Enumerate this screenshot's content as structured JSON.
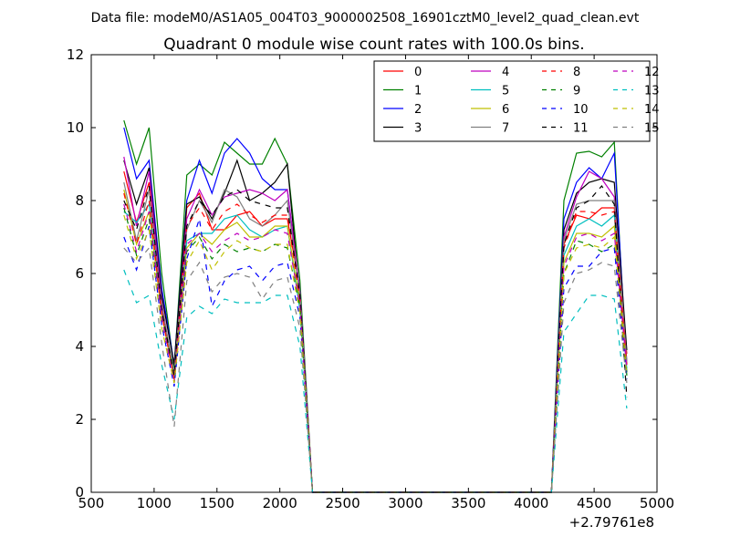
{
  "chart_data": {
    "type": "line",
    "suptitle": "Data file: modeM0/AS1A05_004T03_9000002508_16901cztM0_level2_quad_clean.evt",
    "title": "Quadrant 0 module wise count rates with 100.0s bins.",
    "xlabel": "",
    "ylabel": "",
    "offset_label": "+2.79761e8",
    "xlim": [
      500,
      5000
    ],
    "ylim": [
      0,
      12
    ],
    "xticks": [
      500,
      1000,
      1500,
      2000,
      2500,
      3000,
      3500,
      4000,
      4500,
      5000
    ],
    "yticks": [
      0,
      2,
      4,
      6,
      8,
      10,
      12
    ],
    "legend_position": "top-right",
    "x": [
      760,
      860,
      960,
      1060,
      1160,
      1260,
      1360,
      1460,
      1560,
      1660,
      1760,
      1860,
      1960,
      2060,
      2160,
      2260,
      2360,
      2460,
      2560,
      2660,
      2760,
      2860,
      2960,
      3060,
      3160,
      3260,
      3360,
      3460,
      3560,
      3660,
      3760,
      3860,
      3960,
      4060,
      4160,
      4260,
      4360,
      4460,
      4560,
      4660,
      4760
    ],
    "series": [
      {
        "name": "0",
        "color": "#ff0000",
        "dash": "solid",
        "values": [
          8.8,
          7.4,
          8.5,
          5.0,
          3.1,
          7.8,
          8.2,
          7.2,
          7.2,
          7.6,
          7.7,
          7.3,
          7.5,
          7.5,
          5.6,
          0,
          0,
          0,
          0,
          0,
          0,
          0,
          0,
          0,
          0,
          0,
          0,
          0,
          0,
          0,
          0,
          0,
          0,
          0,
          0,
          6.8,
          7.6,
          7.5,
          7.8,
          7.8,
          3.8
        ]
      },
      {
        "name": "1",
        "color": "#008000",
        "dash": "solid",
        "values": [
          10.2,
          9.0,
          10.0,
          6.0,
          3.4,
          8.7,
          9.0,
          8.7,
          9.6,
          9.3,
          9.0,
          9.0,
          9.7,
          9.0,
          5.8,
          0,
          0,
          0,
          0,
          0,
          0,
          0,
          0,
          0,
          0,
          0,
          0,
          0,
          0,
          0,
          0,
          0,
          0,
          0,
          0,
          8.0,
          9.3,
          9.35,
          9.2,
          9.6,
          3.2
        ]
      },
      {
        "name": "2",
        "color": "#0000ff",
        "dash": "solid",
        "values": [
          10.0,
          8.6,
          9.1,
          5.6,
          3.5,
          8.0,
          9.1,
          8.2,
          9.3,
          9.7,
          9.3,
          8.6,
          8.3,
          8.3,
          5.5,
          0,
          0,
          0,
          0,
          0,
          0,
          0,
          0,
          0,
          0,
          0,
          0,
          0,
          0,
          0,
          0,
          0,
          0,
          0,
          0,
          7.5,
          8.5,
          8.9,
          8.6,
          9.3,
          3.5
        ]
      },
      {
        "name": "3",
        "color": "#000000",
        "dash": "solid",
        "values": [
          9.1,
          7.9,
          8.9,
          5.4,
          3.5,
          7.9,
          8.1,
          7.5,
          8.2,
          9.1,
          8.0,
          8.2,
          8.5,
          9.0,
          5.3,
          0,
          0,
          0,
          0,
          0,
          0,
          0,
          0,
          0,
          0,
          0,
          0,
          0,
          0,
          0,
          0,
          0,
          0,
          0,
          0,
          7.2,
          8.2,
          8.5,
          8.6,
          8.5,
          3.9
        ]
      },
      {
        "name": "4",
        "color": "#bf00bf",
        "dash": "solid",
        "values": [
          9.2,
          7.3,
          8.8,
          5.2,
          3.2,
          7.5,
          8.3,
          7.6,
          8.1,
          8.2,
          8.3,
          8.2,
          8.0,
          8.3,
          5.5,
          0,
          0,
          0,
          0,
          0,
          0,
          0,
          0,
          0,
          0,
          0,
          0,
          0,
          0,
          0,
          0,
          0,
          0,
          0,
          0,
          7.0,
          8.1,
          8.8,
          8.6,
          8.1,
          3.6
        ]
      },
      {
        "name": "5",
        "color": "#00bfbf",
        "dash": "solid",
        "values": [
          7.7,
          7.4,
          7.9,
          4.9,
          3.2,
          6.9,
          7.1,
          7.1,
          7.5,
          7.6,
          7.2,
          7.0,
          7.2,
          7.3,
          5.0,
          0,
          0,
          0,
          0,
          0,
          0,
          0,
          0,
          0,
          0,
          0,
          0,
          0,
          0,
          0,
          0,
          0,
          0,
          0,
          0,
          6.5,
          7.3,
          7.5,
          7.3,
          7.6,
          3.4
        ]
      },
      {
        "name": "6",
        "color": "#bfbf00",
        "dash": "solid",
        "values": [
          8.3,
          6.8,
          7.7,
          4.9,
          3.1,
          6.7,
          7.1,
          6.8,
          7.2,
          7.4,
          7.0,
          7.0,
          7.3,
          7.3,
          5.2,
          0,
          0,
          0,
          0,
          0,
          0,
          0,
          0,
          0,
          0,
          0,
          0,
          0,
          0,
          0,
          0,
          0,
          0,
          0,
          0,
          6.3,
          7.1,
          7.1,
          7.0,
          7.3,
          3.5
        ]
      },
      {
        "name": "7",
        "color": "#808080",
        "dash": "solid",
        "values": [
          8.5,
          6.9,
          8.3,
          5.1,
          3.3,
          7.2,
          8.0,
          7.4,
          8.3,
          8.1,
          7.5,
          7.3,
          7.6,
          8.0,
          5.4,
          0,
          0,
          0,
          0,
          0,
          0,
          0,
          0,
          0,
          0,
          0,
          0,
          0,
          0,
          0,
          0,
          0,
          0,
          0,
          0,
          6.9,
          7.9,
          8.0,
          8.0,
          8.0,
          3.6
        ]
      },
      {
        "name": "8",
        "color": "#ff0000",
        "dash": "dashed",
        "values": [
          8.2,
          6.8,
          8.0,
          4.9,
          3.1,
          7.3,
          7.8,
          7.2,
          7.7,
          7.9,
          7.6,
          7.4,
          7.6,
          7.6,
          5.3,
          0,
          0,
          0,
          0,
          0,
          0,
          0,
          0,
          0,
          0,
          0,
          0,
          0,
          0,
          0,
          0,
          0,
          0,
          0,
          0,
          6.7,
          7.7,
          7.7,
          7.6,
          7.7,
          3.5
        ]
      },
      {
        "name": "9",
        "color": "#008000",
        "dash": "dashed",
        "values": [
          7.8,
          6.5,
          7.5,
          4.8,
          3.0,
          6.6,
          7.0,
          6.4,
          6.8,
          6.6,
          6.7,
          6.6,
          6.8,
          6.7,
          5.1,
          0,
          0,
          0,
          0,
          0,
          0,
          0,
          0,
          0,
          0,
          0,
          0,
          0,
          0,
          0,
          0,
          0,
          0,
          0,
          0,
          6.0,
          6.9,
          6.8,
          6.6,
          6.8,
          3.3
        ]
      },
      {
        "name": "10",
        "color": "#0000ff",
        "dash": "dashed",
        "values": [
          7.0,
          6.1,
          7.3,
          4.6,
          2.9,
          6.4,
          7.5,
          5.1,
          5.8,
          6.1,
          6.2,
          5.8,
          6.2,
          6.3,
          4.8,
          0,
          0,
          0,
          0,
          0,
          0,
          0,
          0,
          0,
          0,
          0,
          0,
          0,
          0,
          0,
          0,
          0,
          0,
          0,
          0,
          5.6,
          6.2,
          6.2,
          6.6,
          6.7,
          3.1
        ]
      },
      {
        "name": "11",
        "color": "#000000",
        "dash": "dashed",
        "values": [
          8.0,
          7.2,
          8.4,
          5.0,
          3.2,
          7.3,
          8.0,
          7.6,
          8.1,
          8.3,
          8.0,
          7.9,
          7.8,
          7.8,
          5.4,
          0,
          0,
          0,
          0,
          0,
          0,
          0,
          0,
          0,
          0,
          0,
          0,
          0,
          0,
          0,
          0,
          0,
          0,
          0,
          0,
          6.8,
          7.8,
          8.0,
          8.4,
          7.9,
          2.6
        ]
      },
      {
        "name": "12",
        "color": "#bf00bf",
        "dash": "dashed",
        "values": [
          7.9,
          6.6,
          7.7,
          4.8,
          3.0,
          6.8,
          7.1,
          6.6,
          6.9,
          7.1,
          6.9,
          7.0,
          7.2,
          7.1,
          5.1,
          0,
          0,
          0,
          0,
          0,
          0,
          0,
          0,
          0,
          0,
          0,
          0,
          0,
          0,
          0,
          0,
          0,
          0,
          0,
          0,
          6.2,
          7.0,
          7.1,
          6.9,
          7.1,
          3.4
        ]
      },
      {
        "name": "13",
        "color": "#00bfbf",
        "dash": "dashed",
        "values": [
          6.1,
          5.2,
          5.4,
          3.5,
          2.0,
          4.8,
          5.1,
          4.9,
          5.3,
          5.2,
          5.2,
          5.2,
          5.4,
          5.4,
          4.0,
          0,
          0,
          0,
          0,
          0,
          0,
          0,
          0,
          0,
          0,
          0,
          0,
          0,
          0,
          0,
          0,
          0,
          0,
          0,
          0,
          4.4,
          4.9,
          5.4,
          5.4,
          5.3,
          2.3
        ]
      },
      {
        "name": "14",
        "color": "#bfbf00",
        "dash": "dashed",
        "values": [
          7.6,
          6.4,
          7.2,
          4.5,
          3.0,
          6.3,
          6.9,
          6.1,
          6.6,
          6.9,
          6.7,
          6.6,
          6.8,
          6.8,
          4.9,
          0,
          0,
          0,
          0,
          0,
          0,
          0,
          0,
          0,
          0,
          0,
          0,
          0,
          0,
          0,
          0,
          0,
          0,
          0,
          0,
          6.0,
          6.7,
          6.8,
          6.7,
          7.0,
          3.2
        ]
      },
      {
        "name": "15",
        "color": "#808080",
        "dash": "dashed",
        "values": [
          6.7,
          6.3,
          6.7,
          4.1,
          1.8,
          5.8,
          6.3,
          5.5,
          5.9,
          6.0,
          5.9,
          5.3,
          5.8,
          5.9,
          4.5,
          0,
          0,
          0,
          0,
          0,
          0,
          0,
          0,
          0,
          0,
          0,
          0,
          0,
          0,
          0,
          0,
          0,
          0,
          0,
          0,
          5.2,
          6.0,
          6.1,
          6.3,
          6.2,
          3.0
        ]
      }
    ]
  }
}
